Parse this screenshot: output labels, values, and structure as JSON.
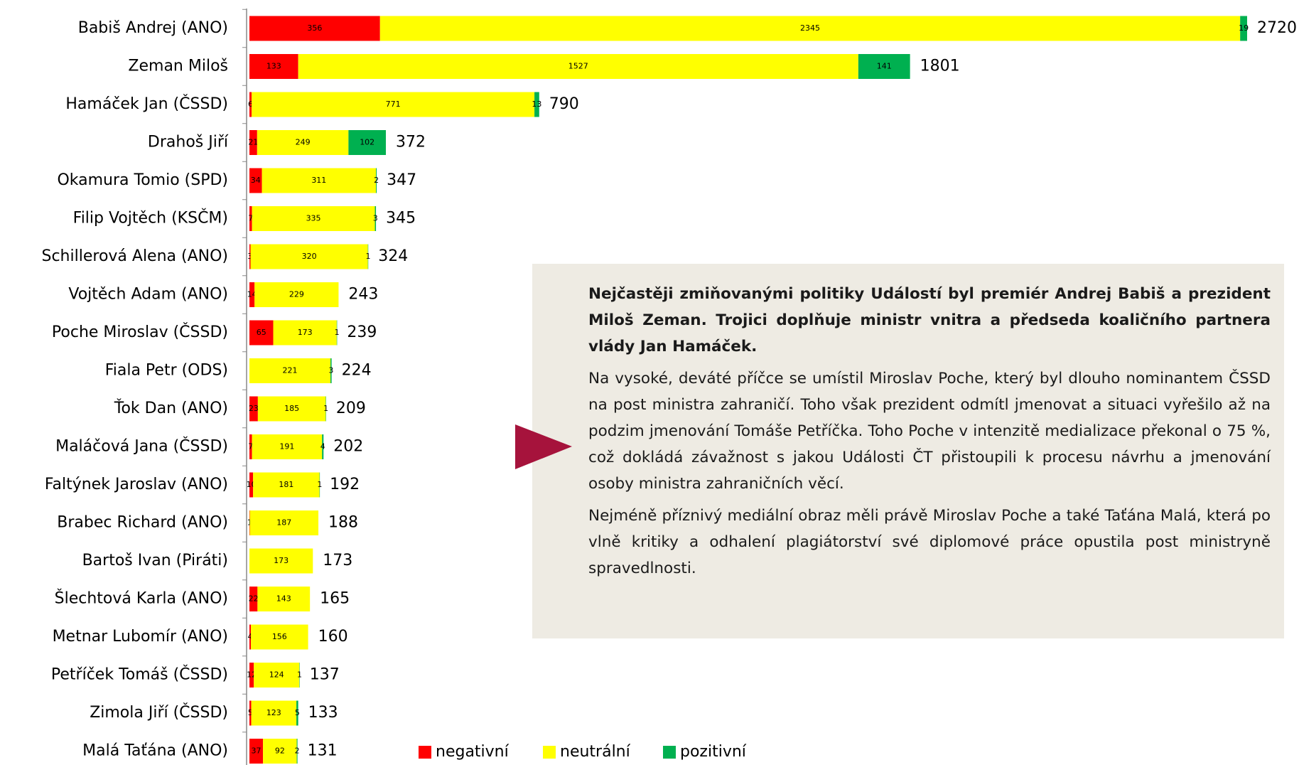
{
  "chart_data": {
    "type": "stacked-bar-horizontal",
    "categories": [
      "Babiš Andrej (ANO)",
      "Zeman Miloš",
      "Hamáček Jan (ČSSD)",
      "Drahoš Jiří",
      "Okamura Tomio (SPD)",
      "Filip Vojtěch (KSČM)",
      "Schillerová Alena (ANO)",
      "Vojtěch Adam (ANO)",
      "Poche Miroslav (ČSSD)",
      "Fiala Petr (ODS)",
      "Ťok Dan (ANO)",
      "Maláčová Jana  (ČSSD)",
      "Faltýnek Jaroslav (ANO)",
      "Brabec Richard (ANO)",
      "Bartoš Ivan (Piráti)",
      "Šlechtová Karla (ANO)",
      "Metnar Lubomír (ANO)",
      "Petříček Tomáš (ČSSD)",
      "Zimola Jiří (ČSSD)",
      "Malá Taťána (ANO)"
    ],
    "series": [
      {
        "name": "negativní",
        "color": "#ff0000",
        "values": [
          356,
          133,
          6,
          21,
          34,
          7,
          3,
          14,
          65,
          null,
          23,
          7,
          10,
          1,
          null,
          22,
          4,
          12,
          5,
          37
        ]
      },
      {
        "name": "neutrální",
        "color": "#ffff00",
        "values": [
          2345,
          1527,
          771,
          249,
          311,
          335,
          320,
          229,
          173,
          221,
          185,
          191,
          181,
          187,
          173,
          143,
          156,
          124,
          123,
          92
        ]
      },
      {
        "name": "pozitivní",
        "color": "#00b050",
        "values": [
          19,
          141,
          13,
          102,
          2,
          3,
          1,
          null,
          1,
          3,
          1,
          4,
          1,
          null,
          null,
          null,
          null,
          1,
          5,
          2
        ]
      }
    ],
    "totals": [
      2720,
      1801,
      790,
      372,
      347,
      345,
      324,
      243,
      239,
      224,
      209,
      202,
      192,
      188,
      173,
      165,
      160,
      137,
      133,
      131
    ]
  },
  "textbox": {
    "paragraphs": [
      "Nejčastěji zmiňovanými politiky Událostí byl premiér Andrej Babiš a prezident Miloš Zeman. Trojici doplňuje ministr vnitra a předseda koaličního partnera vlády Jan Hamáček.",
      "Na vysoké, deváté příčce se umístil Miroslav Poche, který byl dlouho nominantem ČSSD na post ministra zahraničí. Toho však prezident odmítl jmenovat a situaci vyřešilo až na podzim jmenování Tomáše Petříčka. Toho Poche v intenzitě medializace překonal o 75 %, což dokládá závažnost s jakou Události ČT přistoupili k procesu návrhu a jmenování osoby ministra zahraničních věcí.",
      "Nejméně příznivý mediální obraz měli právě Miroslav Poche a také Taťána Malá, která po vlně kritiky a odhalení plagiátorství své diplomové práce opustila post ministryně spravedlnosti."
    ]
  }
}
